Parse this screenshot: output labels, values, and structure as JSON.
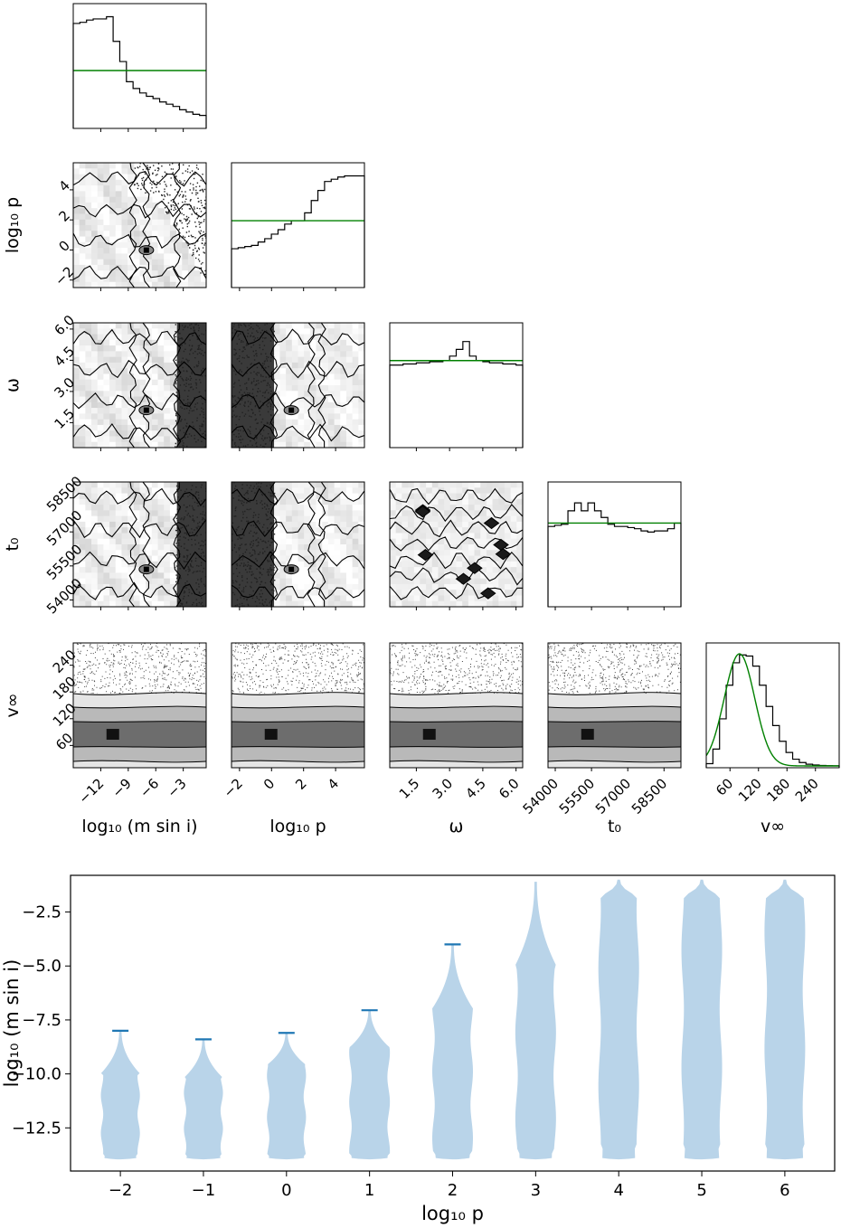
{
  "chart_data": [
    {
      "type": "corner",
      "parameters": [
        {
          "key": "logm",
          "label": "log₁₀ (m sin i)",
          "range": [
            -15,
            -0.5
          ],
          "ticks": [
            -12,
            -9,
            -6,
            -3
          ],
          "tick_labels": [
            "−12",
            "−9",
            "−6",
            "−3"
          ]
        },
        {
          "key": "logp",
          "label": "log₁₀ p",
          "range": [
            -2.5,
            5.8
          ],
          "ticks": [
            -2,
            0,
            2,
            4
          ],
          "tick_labels": [
            "−2",
            "0",
            "2",
            "4"
          ]
        },
        {
          "key": "omega",
          "label": "ω",
          "range": [
            0.3,
            6.3
          ],
          "ticks": [
            1.5,
            3.0,
            4.5,
            6.0
          ],
          "tick_labels": [
            "1.5",
            "3.0",
            "4.5",
            "6.0"
          ]
        },
        {
          "key": "t0",
          "label": "t₀",
          "range": [
            53700,
            59200
          ],
          "ticks": [
            54000,
            55500,
            57000,
            58500
          ],
          "tick_labels": [
            "54000",
            "55500",
            "57000",
            "58500"
          ]
        },
        {
          "key": "vinf",
          "label": "v∞",
          "range": [
            10,
            290
          ],
          "ticks": [
            60,
            120,
            180,
            240
          ],
          "tick_labels": [
            "60",
            "120",
            "180",
            "240"
          ]
        }
      ],
      "histograms": {
        "logm": {
          "values": [
            0.92,
            0.93,
            0.95,
            0.96,
            0.96,
            0.98,
            0.76,
            0.58,
            0.4,
            0.34,
            0.3,
            0.27,
            0.25,
            0.22,
            0.2,
            0.18,
            0.15,
            0.13,
            0.11,
            0.1
          ],
          "prior_level": 0.5
        },
        "logp": {
          "values": [
            0.33,
            0.34,
            0.35,
            0.36,
            0.39,
            0.42,
            0.46,
            0.5,
            0.55,
            0.58,
            0.58,
            0.65,
            0.76,
            0.85,
            0.93,
            0.95,
            0.97,
            0.98,
            0.98,
            0.98
          ],
          "prior_level": 0.58
        },
        "omega": {
          "values": [
            0.72,
            0.72,
            0.73,
            0.73,
            0.74,
            0.74,
            0.75,
            0.75,
            0.76,
            0.8,
            0.86,
            0.93,
            0.8,
            0.76,
            0.75,
            0.74,
            0.74,
            0.73,
            0.73,
            0.72
          ],
          "prior_level": 0.76
        },
        "t0": {
          "values": [
            0.7,
            0.71,
            0.72,
            0.84,
            0.91,
            0.84,
            0.91,
            0.84,
            0.78,
            0.72,
            0.7,
            0.7,
            0.69,
            0.68,
            0.66,
            0.65,
            0.66,
            0.66,
            0.68,
            0.73
          ],
          "prior_level": 0.73
        },
        "vinf": {
          "values": [
            0.02,
            0.15,
            0.42,
            0.72,
            0.92,
            0.99,
            0.98,
            0.89,
            0.72,
            0.53,
            0.36,
            0.22,
            0.12,
            0.06,
            0.03,
            0.015,
            0.008,
            0.004,
            0.002,
            0.001
          ],
          "fit": "gaussian",
          "fit_mean": 80,
          "fit_std": 32
        }
      },
      "line_color": "#000000",
      "prior_color": "#008000"
    },
    {
      "type": "violin",
      "xlabel": "log₁₀ p",
      "ylabel": "log₁₀ (m sin i)",
      "x_ticks": [
        -2,
        -1,
        0,
        1,
        2,
        3,
        4,
        5,
        6
      ],
      "x_tick_labels": [
        "−2",
        "−1",
        "0",
        "1",
        "2",
        "3",
        "4",
        "5",
        "6"
      ],
      "xlim": [
        -2.6,
        6.6
      ],
      "ylim": [
        -14.5,
        -0.8
      ],
      "y_ticks": [
        -12.5,
        -10.0,
        -7.5,
        -5.0,
        -2.5
      ],
      "y_tick_labels": [
        "−12.5",
        "−10.0",
        "−7.5",
        "−5.0",
        "−2.5"
      ],
      "violins": [
        {
          "x": -2,
          "min": -13.9,
          "max": -8.0,
          "bulk_top": -10.0,
          "body_halfwidth": 0.24
        },
        {
          "x": -1,
          "min": -13.9,
          "max": -8.4,
          "bulk_top": -10.2,
          "body_halfwidth": 0.24
        },
        {
          "x": 0,
          "min": -13.9,
          "max": -8.1,
          "bulk_top": -9.6,
          "body_halfwidth": 0.24
        },
        {
          "x": 1,
          "min": -13.9,
          "max": -7.05,
          "bulk_top": -8.8,
          "body_halfwidth": 0.25
        },
        {
          "x": 2,
          "min": -13.9,
          "max": -4.0,
          "bulk_top": -7.0,
          "body_halfwidth": 0.25
        },
        {
          "x": 3,
          "min": -13.9,
          "max": -1.1,
          "bulk_top": -5.0,
          "body_halfwidth": 0.25
        },
        {
          "x": 4,
          "min": -13.9,
          "max": -1.0,
          "bulk_top": -1.8,
          "body_halfwidth": 0.25
        },
        {
          "x": 5,
          "min": -13.9,
          "max": -1.0,
          "bulk_top": -1.8,
          "body_halfwidth": 0.25
        },
        {
          "x": 6,
          "min": -13.9,
          "max": -1.0,
          "bulk_top": -1.8,
          "body_halfwidth": 0.25
        }
      ],
      "max_markers": [
        -2,
        -1,
        0,
        1,
        2
      ],
      "body_color": "#b9d4e9",
      "marker_color": "#1f77b4"
    }
  ]
}
